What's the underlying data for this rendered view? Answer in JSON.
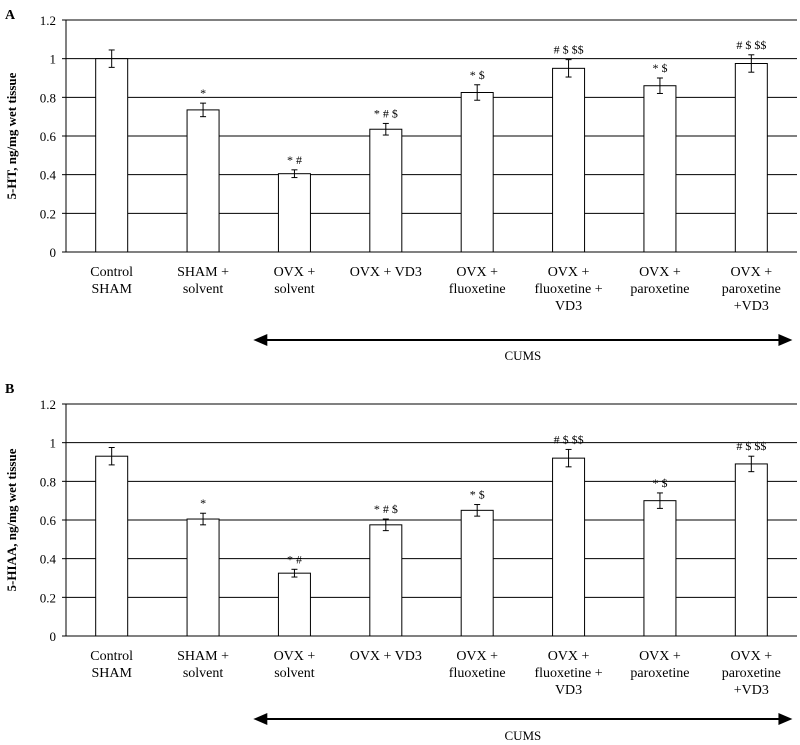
{
  "figure": {
    "arrow_label": "CUMS"
  },
  "chart_data": [
    {
      "type": "bar",
      "panel_label": "A",
      "ylabel": "5-HT, ng/mg wet tissue",
      "ylim": [
        0,
        1.2
      ],
      "yticks": [
        "0",
        "0.2",
        "0.4",
        "0.6",
        "0.8",
        "1",
        "1.2"
      ],
      "grid": true,
      "categories": [
        [
          "Control",
          "SHAM"
        ],
        [
          "SHAM +",
          "solvent"
        ],
        [
          "OVX +",
          "solvent"
        ],
        [
          "OVX + VD3"
        ],
        [
          "OVX +",
          "fluoxetine"
        ],
        [
          "OVX +",
          "fluoxetine +",
          "VD3"
        ],
        [
          "OVX +",
          "paroxetine"
        ],
        [
          "OVX +",
          "paroxetine",
          "+VD3"
        ]
      ],
      "values": [
        1.0,
        0.735,
        0.405,
        0.635,
        0.825,
        0.95,
        0.86,
        0.975
      ],
      "errors": [
        0.045,
        0.035,
        0.02,
        0.03,
        0.04,
        0.045,
        0.04,
        0.045
      ],
      "annotations": [
        "",
        "*",
        "* #",
        "* # $",
        "* $",
        "# $ $$",
        "* $",
        "# $ $$"
      ]
    },
    {
      "type": "bar",
      "panel_label": "B",
      "ylabel": "5-HIAA, ng/mg wet tissue",
      "ylim": [
        0,
        1.2
      ],
      "yticks": [
        "0",
        "0.2",
        "0.4",
        "0.6",
        "0.8",
        "1",
        "1.2"
      ],
      "grid": true,
      "categories": [
        [
          "Control",
          "SHAM"
        ],
        [
          "SHAM +",
          "solvent"
        ],
        [
          "OVX +",
          "solvent"
        ],
        [
          "OVX + VD3"
        ],
        [
          "OVX +",
          "fluoxetine"
        ],
        [
          "OVX +",
          "fluoxetine +",
          "VD3"
        ],
        [
          "OVX +",
          "paroxetine"
        ],
        [
          "OVX +",
          "paroxetine",
          "+VD3"
        ]
      ],
      "values": [
        0.93,
        0.605,
        0.325,
        0.575,
        0.65,
        0.92,
        0.7,
        0.89
      ],
      "errors": [
        0.045,
        0.03,
        0.02,
        0.03,
        0.03,
        0.045,
        0.04,
        0.04
      ],
      "annotations": [
        "",
        "*",
        "* #",
        "* # $",
        "* $",
        "# $ $$",
        "* $",
        "# $ $$"
      ]
    }
  ]
}
